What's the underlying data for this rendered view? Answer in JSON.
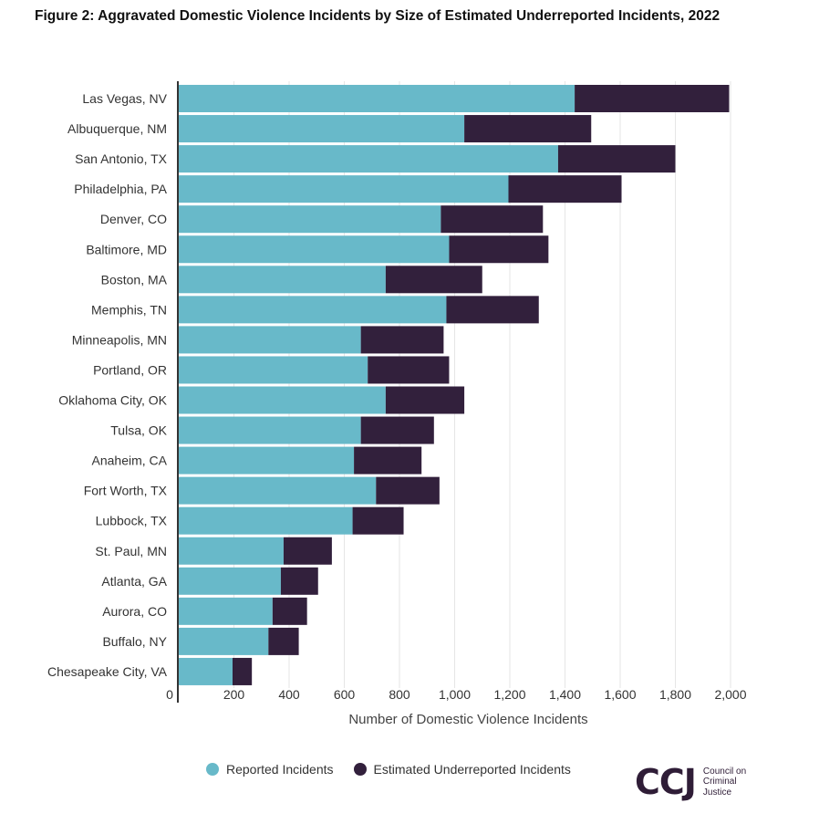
{
  "title": "Figure 2: Aggravated Domestic Violence Incidents by Size of Estimated Underreported Incidents, 2022",
  "colors": {
    "reported": "#68b9c9",
    "underreported": "#32203c",
    "axis": "#333333"
  },
  "legend": {
    "reported_label": "Reported Incidents",
    "underreported_label": "Estimated Underreported Incidents"
  },
  "logo": {
    "mark": "CCJ",
    "line1": "Council on",
    "line2": "Criminal",
    "line3": "Justice"
  },
  "chart_data": {
    "type": "bar",
    "orientation": "horizontal",
    "stacked": true,
    "title": "Figure 2: Aggravated Domestic Violence Incidents by Size of Estimated Underreported Incidents, 2022",
    "xlabel": "Number of Domestic Violence Incidents",
    "ylabel": "",
    "xlim": [
      0,
      2000
    ],
    "x_ticks": [
      0,
      200,
      400,
      600,
      800,
      1000,
      1200,
      1400,
      1600,
      1800,
      2000
    ],
    "x_tick_labels": [
      "0",
      "200",
      "400",
      "600",
      "800",
      "1,000",
      "1,200",
      "1,400",
      "1,600",
      "1,800",
      "2,000"
    ],
    "grid": true,
    "legend_position": "bottom",
    "categories": [
      "Las Vegas, NV",
      "Albuquerque, NM",
      "San Antonio, TX",
      "Philadelphia, PA",
      "Denver, CO",
      "Baltimore, MD",
      "Boston, MA",
      "Memphis, TN",
      "Minneapolis, MN",
      "Portland, OR",
      "Oklahoma City, OK",
      "Tulsa, OK",
      "Anaheim, CA",
      "Fort Worth, TX",
      "Lubbock, TX",
      "St. Paul, MN",
      "Atlanta, GA",
      "Aurora, CO",
      "Buffalo, NY",
      "Chesapeake City, VA"
    ],
    "series": [
      {
        "name": "Reported Incidents",
        "values": [
          1435,
          1035,
          1375,
          1195,
          950,
          980,
          750,
          970,
          660,
          685,
          750,
          660,
          635,
          715,
          630,
          380,
          370,
          340,
          325,
          195
        ]
      },
      {
        "name": "Estimated Underreported Incidents",
        "values": [
          560,
          460,
          425,
          410,
          370,
          360,
          350,
          335,
          300,
          295,
          285,
          265,
          245,
          230,
          185,
          175,
          135,
          125,
          110,
          70
        ]
      }
    ]
  }
}
